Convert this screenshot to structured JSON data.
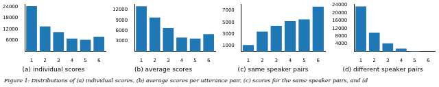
{
  "figure_caption": "Figure 1: Distributions of (a) individual scores, (b) average scores per utterance pair, (c) scores for the same speaker pairs, and (d",
  "chart_data": [
    {
      "type": "bar",
      "title": "(a) individual scores",
      "categories": [
        "1",
        "2",
        "3",
        "4",
        "5",
        "6"
      ],
      "values": [
        24500,
        13500,
        10500,
        7000,
        6300,
        8000
      ],
      "color": "#1f77b4",
      "ylim": [
        0,
        25500
      ],
      "yticks": [
        6000,
        12000,
        18000,
        24000
      ],
      "grid": false
    },
    {
      "type": "bar",
      "title": "(b) average scores",
      "categories": [
        "1",
        "2",
        "3",
        "4",
        "5",
        "6"
      ],
      "values": [
        13000,
        9800,
        6800,
        4000,
        3700,
        5000
      ],
      "color": "#1f77b4",
      "ylim": [
        0,
        13600
      ],
      "yticks": [
        3000,
        6000,
        9000,
        12000
      ],
      "grid": false
    },
    {
      "type": "bar",
      "title": "(c) same speaker pairs",
      "categories": [
        "1",
        "2",
        "3",
        "4",
        "5",
        "6"
      ],
      "values": [
        1100,
        3400,
        4400,
        5200,
        5500,
        7700
      ],
      "color": "#1f77b4",
      "ylim": [
        0,
        8100
      ],
      "yticks": [
        1000,
        3000,
        5000,
        7000
      ],
      "grid": false
    },
    {
      "type": "bar",
      "title": "(d) different speaker pairs",
      "categories": [
        "1",
        "2",
        "3",
        "4",
        "5",
        "6"
      ],
      "values": [
        23300,
        9800,
        4200,
        1500,
        300,
        50
      ],
      "color": "#1f77b4",
      "ylim": [
        0,
        24500
      ],
      "yticks": [
        4000,
        8000,
        12000,
        16000,
        20000,
        24000
      ],
      "grid": false
    }
  ]
}
